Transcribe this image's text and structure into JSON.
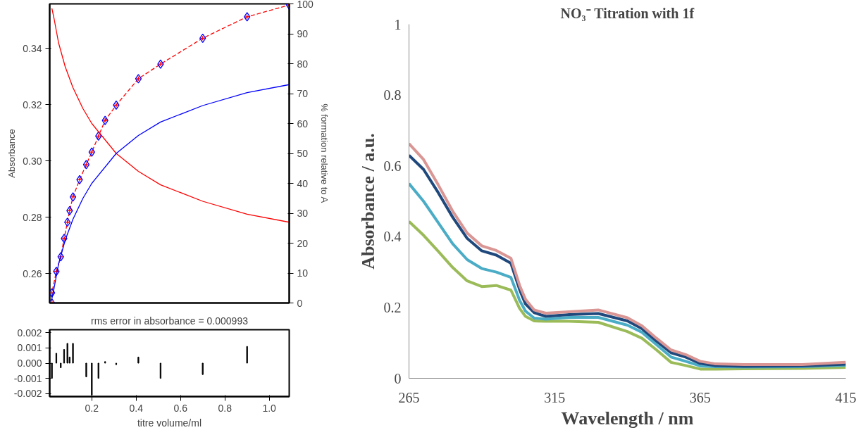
{
  "chart_data": [
    {
      "type": "scatter",
      "ylabel": "Absorbance",
      "y2label": "% formation relative to A",
      "xlim": [
        0.01,
        1.09
      ],
      "ylim": [
        0.2495,
        0.3558
      ],
      "yticks": [
        0.26,
        0.28,
        {
          "value": 0.3,
          "label": "0.30"
        },
        0.32,
        0.34
      ],
      "y2lim": [
        0,
        100
      ],
      "y2ticks": [
        0,
        10,
        20,
        30,
        40,
        50,
        60,
        70,
        80,
        90,
        100
      ],
      "tick_labels": "y",
      "grid": false,
      "series": [
        {
          "type": "line",
          "line_style": "dashed",
          "marker": "cross",
          "color": "#ff0000",
          "x": [
            0.02,
            0.02,
            0.04,
            0.06,
            0.075,
            0.09,
            0.1,
            0.115,
            0.145,
            0.175,
            0.2,
            0.23,
            0.26,
            0.31,
            0.41,
            0.51,
            0.7,
            0.9,
            1.09
          ],
          "values": [
            0.2495,
            0.2531,
            0.2607,
            0.2659,
            0.2724,
            0.2782,
            0.2823,
            0.2872,
            0.2933,
            0.2987,
            0.3031,
            0.3088,
            0.3144,
            0.3198,
            0.3292,
            0.3344,
            0.3436,
            0.3512,
            0.3554
          ]
        },
        {
          "type": "scatter",
          "marker": "diamond",
          "color": "#0000ff",
          "x": [
            0.02,
            0.02,
            0.04,
            0.06,
            0.075,
            0.09,
            0.1,
            0.115,
            0.145,
            0.175,
            0.2,
            0.23,
            0.26,
            0.31,
            0.41,
            0.51,
            0.7,
            0.9,
            1.09
          ],
          "values": [
            0.2495,
            0.2531,
            0.2607,
            0.2659,
            0.2724,
            0.2782,
            0.2823,
            0.2872,
            0.2933,
            0.2987,
            0.3031,
            0.3088,
            0.3144,
            0.3198,
            0.3292,
            0.3344,
            0.3436,
            0.3512,
            0.3554
          ]
        },
        {
          "type": "line",
          "axis": "y2",
          "color": "#ff0000",
          "x": [
            0.02,
            0.03,
            0.05,
            0.08,
            0.115,
            0.16,
            0.2,
            0.31,
            0.41,
            0.51,
            0.7,
            0.9,
            1.09
          ],
          "values": [
            98.5,
            95,
            87,
            79,
            72,
            65,
            60,
            50,
            44,
            39.5,
            34,
            29.7,
            27
          ]
        },
        {
          "type": "line",
          "axis": "y2",
          "color": "#0000ff",
          "x": [
            0.02,
            0.03,
            0.05,
            0.08,
            0.115,
            0.16,
            0.2,
            0.31,
            0.41,
            0.51,
            0.7,
            0.9,
            1.09
          ],
          "values": [
            1.5,
            5,
            13,
            21,
            28,
            35,
            40,
            50,
            56,
            60.5,
            66,
            70.3,
            73
          ]
        }
      ]
    },
    {
      "type": "bar",
      "title": "rms error in absorbance = 0.000993",
      "xlabel": "titre volume/ml",
      "xlim": [
        0.01,
        1.09
      ],
      "xticks": [
        0.2,
        0.4,
        0.6,
        0.8,
        {
          "value": 1.0,
          "label": "1.0"
        }
      ],
      "ylim": [
        -0.0022,
        0.0022
      ],
      "yticks": [
        {
          "value": -0.002,
          "label": "-0.002"
        },
        {
          "value": -0.001,
          "label": "-0.001"
        },
        {
          "value": 0,
          "label": "0.000"
        },
        {
          "value": 0.001,
          "label": "0.001"
        },
        {
          "value": 0.002,
          "label": "0.002"
        }
      ],
      "grid": false,
      "series": [
        {
          "color": "#000000",
          "x": [
            0.02,
            0.04,
            0.06,
            0.075,
            0.09,
            0.1,
            0.115,
            0.175,
            0.2,
            0.23,
            0.26,
            0.31,
            0.41,
            0.51,
            0.7,
            0.9
          ],
          "values": [
            -0.001,
            0.00065,
            -0.0003,
            0.0009,
            0.0013,
            0.0004,
            0.0013,
            -0.0009,
            -0.0021,
            -0.001,
            0.0001,
            -0.0001,
            0.0004,
            -0.001,
            -0.00075,
            0.0011
          ]
        }
      ]
    },
    {
      "type": "line",
      "title": "NO₃⁻ Titration with 1f",
      "xlabel": "Wavelength / nm",
      "ylabel": "Absorbance / a.u.",
      "xlim": [
        265,
        415
      ],
      "ylim": [
        0,
        1
      ],
      "xticks": [
        265,
        315,
        365,
        415
      ],
      "yticks": [
        0,
        0.2,
        0.4,
        0.6,
        0.8,
        1
      ],
      "grid": false,
      "x": [
        265,
        270,
        275,
        280,
        285,
        290,
        295,
        300,
        303,
        305,
        308,
        312,
        320,
        330,
        340,
        345,
        350,
        355,
        360,
        365,
        370,
        380,
        400,
        415
      ],
      "series": [
        {
          "color": "#9bbb59",
          "values": [
            0.443,
            0.404,
            0.359,
            0.313,
            0.275,
            0.259,
            0.262,
            0.249,
            0.197,
            0.175,
            0.162,
            0.161,
            0.161,
            0.158,
            0.132,
            0.113,
            0.08,
            0.045,
            0.036,
            0.026,
            0.026,
            0.027,
            0.028,
            0.031
          ]
        },
        {
          "color": "#4bacc6",
          "values": [
            0.55,
            0.5,
            0.44,
            0.38,
            0.335,
            0.31,
            0.3,
            0.285,
            0.22,
            0.19,
            0.17,
            0.167,
            0.172,
            0.172,
            0.15,
            0.13,
            0.095,
            0.06,
            0.048,
            0.035,
            0.033,
            0.032,
            0.033,
            0.037
          ]
        },
        {
          "color": "#1f497d",
          "values": [
            0.63,
            0.59,
            0.525,
            0.455,
            0.395,
            0.36,
            0.348,
            0.325,
            0.25,
            0.21,
            0.185,
            0.175,
            0.18,
            0.183,
            0.162,
            0.14,
            0.105,
            0.072,
            0.06,
            0.042,
            0.036,
            0.034,
            0.035,
            0.04
          ]
        },
        {
          "color": "#d99694",
          "values": [
            0.663,
            0.618,
            0.547,
            0.472,
            0.41,
            0.374,
            0.361,
            0.339,
            0.262,
            0.223,
            0.193,
            0.184,
            0.188,
            0.193,
            0.171,
            0.148,
            0.113,
            0.08,
            0.067,
            0.048,
            0.041,
            0.039,
            0.039,
            0.045
          ]
        }
      ]
    }
  ]
}
